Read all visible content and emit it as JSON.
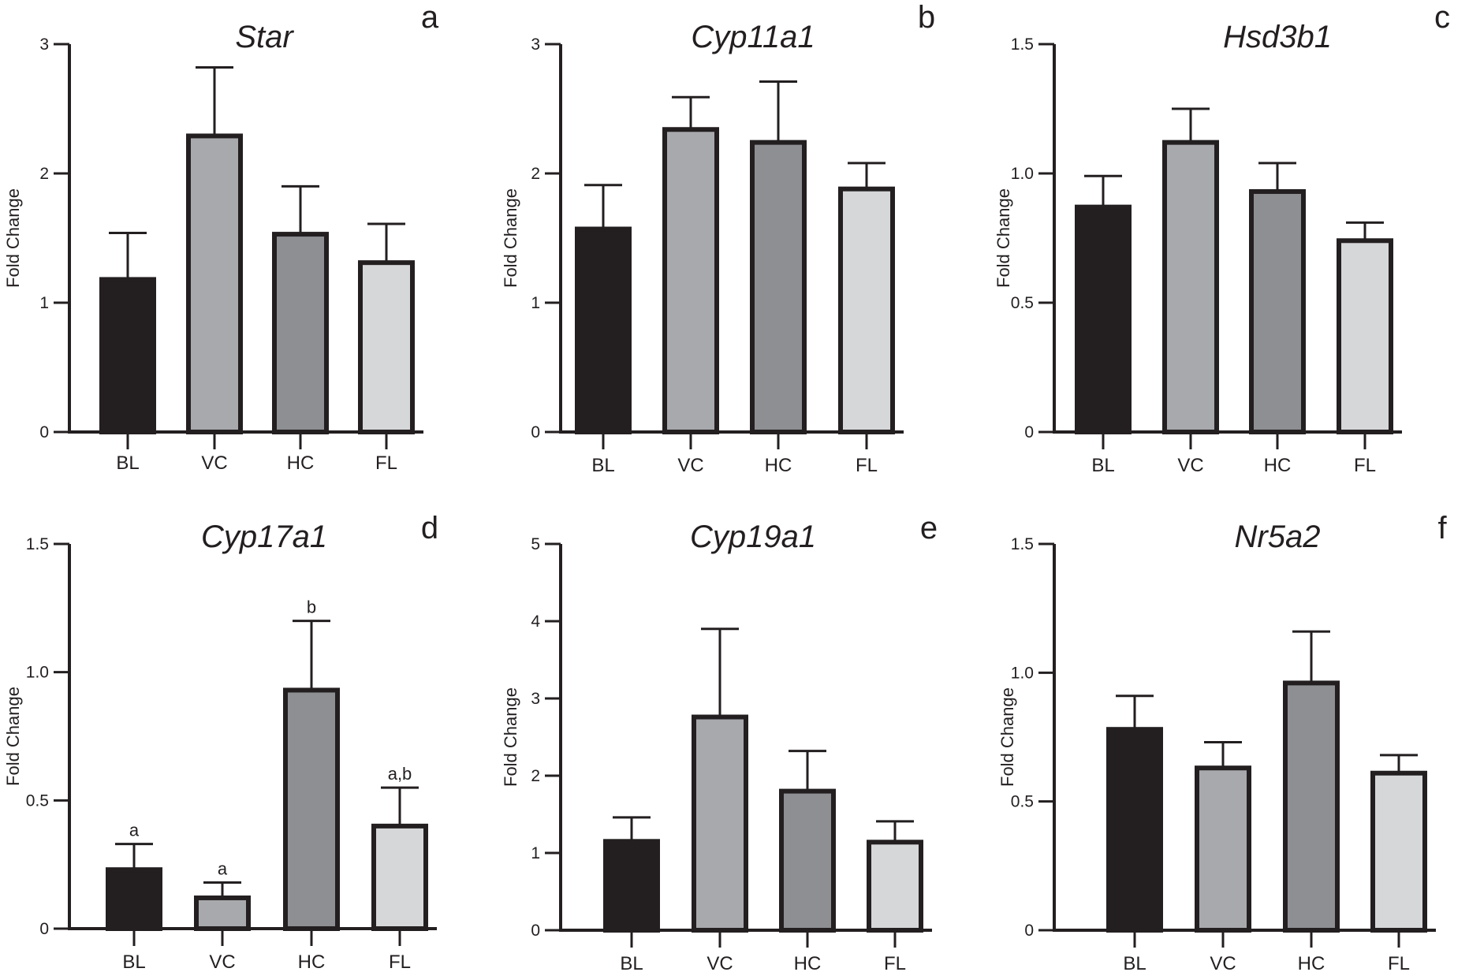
{
  "figure": {
    "colors": {
      "axis": "#231f20",
      "bar_fills": [
        "#231f20",
        "#a8a9ad",
        "#8e8f93",
        "#d6d7d9"
      ]
    },
    "charts": [
      {
        "panel_letter": "a",
        "chart_data": {
          "type": "bar",
          "title": "Star",
          "xlabel": "",
          "ylabel": "Fold Change",
          "categories": [
            "BL",
            "VC",
            "HC",
            "FL"
          ],
          "values": [
            1.18,
            2.29,
            1.53,
            1.31
          ],
          "errors": [
            0.36,
            0.53,
            0.37,
            0.3
          ],
          "significance": [],
          "ylim": [
            0,
            3
          ],
          "yticks": [
            0,
            1,
            2,
            3
          ],
          "ytick_labels": [
            "0",
            "1",
            "2",
            "3"
          ]
        }
      },
      {
        "panel_letter": "b",
        "chart_data": {
          "type": "bar",
          "title": "Cyp11a1",
          "xlabel": "",
          "ylabel": "Fold Change",
          "categories": [
            "BL",
            "VC",
            "HC",
            "FL"
          ],
          "values": [
            1.57,
            2.34,
            2.24,
            1.88
          ],
          "errors": [
            0.34,
            0.25,
            0.47,
            0.2
          ],
          "significance": [],
          "ylim": [
            0,
            3
          ],
          "yticks": [
            0,
            1,
            2,
            3
          ],
          "ytick_labels": [
            "0",
            "1",
            "2",
            "3"
          ]
        }
      },
      {
        "panel_letter": "c",
        "chart_data": {
          "type": "bar",
          "title": "Hsd3b1",
          "xlabel": "",
          "ylabel": "Fold Change",
          "categories": [
            "BL",
            "VC",
            "HC",
            "FL"
          ],
          "values": [
            0.87,
            1.12,
            0.93,
            0.74
          ],
          "errors": [
            0.12,
            0.13,
            0.11,
            0.07
          ],
          "significance": [],
          "ylim": [
            0,
            1.5
          ],
          "yticks": [
            0,
            0.5,
            1.0,
            1.5
          ],
          "ytick_labels": [
            "0",
            "0.5",
            "1.0",
            "1.5"
          ]
        }
      },
      {
        "panel_letter": "d",
        "chart_data": {
          "type": "bar",
          "title": "Cyp17a1",
          "xlabel": "",
          "ylabel": "Fold Change",
          "categories": [
            "BL",
            "VC",
            "HC",
            "FL"
          ],
          "values": [
            0.23,
            0.12,
            0.93,
            0.4
          ],
          "errors": [
            0.1,
            0.06,
            0.27,
            0.15
          ],
          "significance": [
            "a",
            "a",
            "b",
            "a,b"
          ],
          "ylim": [
            0,
            1.5
          ],
          "yticks": [
            0,
            0.5,
            1.0,
            1.5
          ],
          "ytick_labels": [
            "0",
            "0.5",
            "1.0",
            "1.5"
          ]
        }
      },
      {
        "panel_letter": "e",
        "chart_data": {
          "type": "bar",
          "title": "Cyp19a1",
          "xlabel": "",
          "ylabel": "Fold Change",
          "categories": [
            "BL",
            "VC",
            "HC",
            "FL"
          ],
          "values": [
            1.15,
            2.76,
            1.8,
            1.14
          ],
          "errors": [
            0.31,
            1.14,
            0.52,
            0.27
          ],
          "significance": [],
          "ylim": [
            0,
            5
          ],
          "yticks": [
            0,
            1,
            2,
            3,
            4,
            5
          ],
          "ytick_labels": [
            "0",
            "1",
            "2",
            "3",
            "4",
            "5"
          ]
        }
      },
      {
        "panel_letter": "f",
        "chart_data": {
          "type": "bar",
          "title": "Nr5a2",
          "xlabel": "",
          "ylabel": "Fold Change",
          "categories": [
            "BL",
            "VC",
            "HC",
            "FL"
          ],
          "values": [
            0.78,
            0.63,
            0.96,
            0.61
          ],
          "errors": [
            0.13,
            0.1,
            0.2,
            0.07
          ],
          "significance": [],
          "ylim": [
            0,
            1.5
          ],
          "yticks": [
            0,
            0.5,
            1.0,
            1.5
          ],
          "ytick_labels": [
            "0",
            "0.5",
            "1.0",
            "1.5"
          ]
        }
      }
    ]
  }
}
